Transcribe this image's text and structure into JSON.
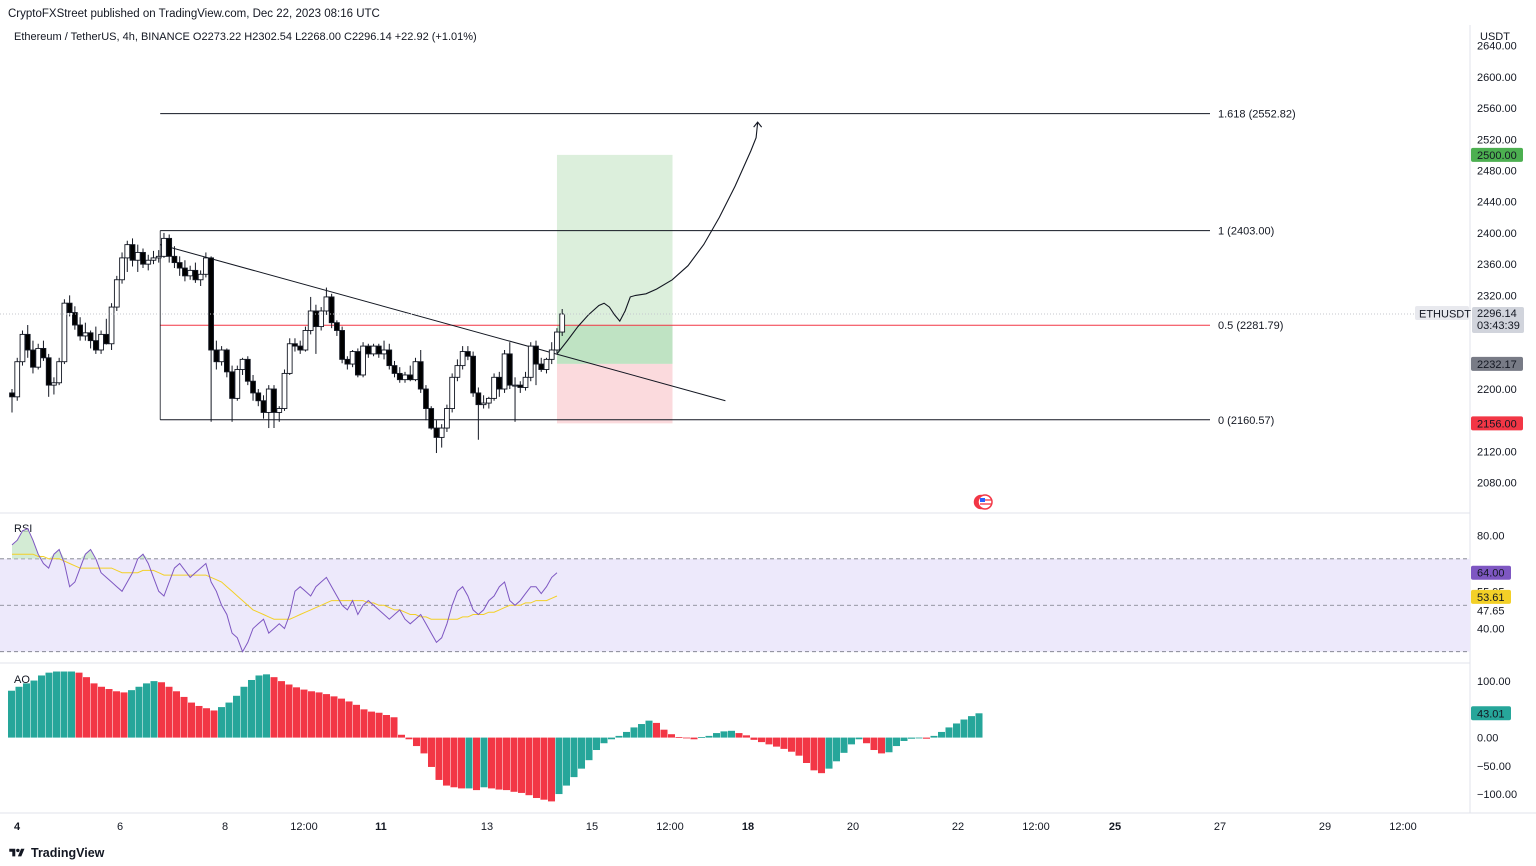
{
  "header": {
    "published_by": "CryptoFXStreet published on TradingView.com, Dec 22, 2023 08:16 UTC",
    "symbol_line": "Ethereum / TetherUS, 4h, BINANCE  O2273.22  H2302.54  L2268.00  C2296.14  +22.92 (+1.01%)"
  },
  "footer": {
    "brand": "TradingView"
  },
  "colors": {
    "up_body": "#ffffff",
    "down_body": "#000000",
    "bull_bar": "#26a69a",
    "bear_bar": "#f23645",
    "fib_mid": "#f23645",
    "target_zone": "#dcefdc",
    "profit_zone": "#bfe3c3",
    "stop_zone": "#fbdadd",
    "rsi_band": "#ede9fb",
    "rsi_line": "#7e57c2",
    "rsi_ma": "#f3d027"
  },
  "chart_data": {
    "type": "candlestick",
    "title": "Ethereum / TetherUS, 4h, BINANCE",
    "currency": "USDT",
    "ohlc": {
      "open": 2273.22,
      "high": 2302.54,
      "low": 2268.0,
      "close": 2296.14,
      "change": 22.92,
      "change_pct": 1.01
    },
    "x_axis": {
      "labels": [
        "4",
        "6",
        "8",
        "12:00",
        "11",
        "13",
        "15",
        "12:00",
        "18",
        "20",
        "22",
        "12:00",
        "25",
        "27",
        "29",
        "12:00"
      ],
      "bold": [
        true,
        false,
        false,
        false,
        true,
        false,
        false,
        false,
        true,
        false,
        false,
        false,
        true,
        false,
        false,
        false
      ]
    },
    "price_axis": {
      "ticks": [
        2640,
        2600,
        2560,
        2520,
        2480,
        2440,
        2400,
        2360,
        2320,
        2200,
        2160,
        2120,
        2080
      ],
      "ylim": [
        2045,
        2660
      ]
    },
    "price_labels": [
      {
        "text": "2500.00",
        "value": 2500.0,
        "color": "#4caf50"
      },
      {
        "text": "2232.17",
        "value": 2232.17,
        "color": "#787b86"
      },
      {
        "text": "2156.00",
        "value": 2156.0,
        "color": "#f23645"
      }
    ],
    "last_price": {
      "symbol": "ETHUSDT",
      "price": "2296.14",
      "countdown": "03:43:39",
      "value": 2296.14
    },
    "candles": [
      {
        "o": 2195,
        "h": 2200,
        "l": 2170,
        "c": 2190
      },
      {
        "o": 2190,
        "h": 2240,
        "l": 2185,
        "c": 2235
      },
      {
        "o": 2235,
        "h": 2275,
        "l": 2230,
        "c": 2270
      },
      {
        "o": 2270,
        "h": 2282,
        "l": 2240,
        "c": 2250
      },
      {
        "o": 2250,
        "h": 2262,
        "l": 2220,
        "c": 2228
      },
      {
        "o": 2228,
        "h": 2258,
        "l": 2225,
        "c": 2252
      },
      {
        "o": 2252,
        "h": 2262,
        "l": 2236,
        "c": 2240
      },
      {
        "o": 2240,
        "h": 2245,
        "l": 2190,
        "c": 2205
      },
      {
        "o": 2205,
        "h": 2215,
        "l": 2193,
        "c": 2208
      },
      {
        "o": 2208,
        "h": 2240,
        "l": 2205,
        "c": 2235
      },
      {
        "o": 2235,
        "h": 2315,
        "l": 2232,
        "c": 2310
      },
      {
        "o": 2310,
        "h": 2320,
        "l": 2293,
        "c": 2298
      },
      {
        "o": 2298,
        "h": 2306,
        "l": 2276,
        "c": 2282
      },
      {
        "o": 2282,
        "h": 2292,
        "l": 2262,
        "c": 2268
      },
      {
        "o": 2268,
        "h": 2285,
        "l": 2262,
        "c": 2272
      },
      {
        "o": 2272,
        "h": 2275,
        "l": 2252,
        "c": 2262
      },
      {
        "o": 2262,
        "h": 2280,
        "l": 2245,
        "c": 2250
      },
      {
        "o": 2250,
        "h": 2275,
        "l": 2245,
        "c": 2270
      },
      {
        "o": 2270,
        "h": 2290,
        "l": 2257,
        "c": 2258
      },
      {
        "o": 2258,
        "h": 2310,
        "l": 2250,
        "c": 2305
      },
      {
        "o": 2305,
        "h": 2345,
        "l": 2300,
        "c": 2340
      },
      {
        "o": 2340,
        "h": 2375,
        "l": 2335,
        "c": 2368
      },
      {
        "o": 2368,
        "h": 2390,
        "l": 2350,
        "c": 2385
      },
      {
        "o": 2385,
        "h": 2393,
        "l": 2357,
        "c": 2365
      },
      {
        "o": 2365,
        "h": 2385,
        "l": 2350,
        "c": 2375
      },
      {
        "o": 2375,
        "h": 2380,
        "l": 2355,
        "c": 2360
      },
      {
        "o": 2360,
        "h": 2372,
        "l": 2352,
        "c": 2365
      },
      {
        "o": 2365,
        "h": 2377,
        "l": 2360,
        "c": 2368
      },
      {
        "o": 2368,
        "h": 2378,
        "l": 2362,
        "c": 2370
      },
      {
        "o": 2370,
        "h": 2400,
        "l": 2368,
        "c": 2393
      },
      {
        "o": 2393,
        "h": 2398,
        "l": 2362,
        "c": 2370
      },
      {
        "o": 2370,
        "h": 2383,
        "l": 2355,
        "c": 2362
      },
      {
        "o": 2362,
        "h": 2370,
        "l": 2345,
        "c": 2355
      },
      {
        "o": 2355,
        "h": 2365,
        "l": 2338,
        "c": 2345
      },
      {
        "o": 2345,
        "h": 2358,
        "l": 2340,
        "c": 2352
      },
      {
        "o": 2352,
        "h": 2362,
        "l": 2336,
        "c": 2340
      },
      {
        "o": 2340,
        "h": 2352,
        "l": 2332,
        "c": 2347
      },
      {
        "o": 2347,
        "h": 2375,
        "l": 2343,
        "c": 2368
      },
      {
        "o": 2368,
        "h": 2370,
        "l": 2158,
        "c": 2250
      },
      {
        "o": 2250,
        "h": 2262,
        "l": 2225,
        "c": 2235
      },
      {
        "o": 2235,
        "h": 2255,
        "l": 2230,
        "c": 2250
      },
      {
        "o": 2250,
        "h": 2252,
        "l": 2215,
        "c": 2222
      },
      {
        "o": 2222,
        "h": 2230,
        "l": 2158,
        "c": 2188
      },
      {
        "o": 2188,
        "h": 2230,
        "l": 2185,
        "c": 2225
      },
      {
        "o": 2225,
        "h": 2240,
        "l": 2218,
        "c": 2238
      },
      {
        "o": 2238,
        "h": 2242,
        "l": 2205,
        "c": 2210
      },
      {
        "o": 2210,
        "h": 2218,
        "l": 2185,
        "c": 2195
      },
      {
        "o": 2195,
        "h": 2200,
        "l": 2178,
        "c": 2185
      },
      {
        "o": 2185,
        "h": 2192,
        "l": 2162,
        "c": 2170
      },
      {
        "o": 2170,
        "h": 2205,
        "l": 2150,
        "c": 2200
      },
      {
        "o": 2200,
        "h": 2205,
        "l": 2150,
        "c": 2170
      },
      {
        "o": 2170,
        "h": 2178,
        "l": 2158,
        "c": 2175
      },
      {
        "o": 2175,
        "h": 2225,
        "l": 2172,
        "c": 2220
      },
      {
        "o": 2220,
        "h": 2265,
        "l": 2218,
        "c": 2258
      },
      {
        "o": 2258,
        "h": 2265,
        "l": 2248,
        "c": 2255
      },
      {
        "o": 2255,
        "h": 2262,
        "l": 2245,
        "c": 2250
      },
      {
        "o": 2250,
        "h": 2280,
        "l": 2248,
        "c": 2275
      },
      {
        "o": 2275,
        "h": 2318,
        "l": 2270,
        "c": 2300
      },
      {
        "o": 2300,
        "h": 2308,
        "l": 2245,
        "c": 2280
      },
      {
        "o": 2280,
        "h": 2305,
        "l": 2275,
        "c": 2300
      },
      {
        "o": 2300,
        "h": 2330,
        "l": 2295,
        "c": 2318
      },
      {
        "o": 2318,
        "h": 2322,
        "l": 2278,
        "c": 2285
      },
      {
        "o": 2285,
        "h": 2288,
        "l": 2268,
        "c": 2275
      },
      {
        "o": 2275,
        "h": 2280,
        "l": 2233,
        "c": 2238
      },
      {
        "o": 2238,
        "h": 2242,
        "l": 2225,
        "c": 2232
      },
      {
        "o": 2232,
        "h": 2250,
        "l": 2228,
        "c": 2248
      },
      {
        "o": 2248,
        "h": 2252,
        "l": 2215,
        "c": 2218
      },
      {
        "o": 2218,
        "h": 2260,
        "l": 2215,
        "c": 2255
      },
      {
        "o": 2255,
        "h": 2258,
        "l": 2240,
        "c": 2245
      },
      {
        "o": 2245,
        "h": 2258,
        "l": 2242,
        "c": 2255
      },
      {
        "o": 2255,
        "h": 2258,
        "l": 2240,
        "c": 2245
      },
      {
        "o": 2245,
        "h": 2262,
        "l": 2238,
        "c": 2250
      },
      {
        "o": 2250,
        "h": 2258,
        "l": 2225,
        "c": 2230
      },
      {
        "o": 2230,
        "h": 2236,
        "l": 2215,
        "c": 2220
      },
      {
        "o": 2220,
        "h": 2228,
        "l": 2208,
        "c": 2212
      },
      {
        "o": 2212,
        "h": 2222,
        "l": 2208,
        "c": 2218
      },
      {
        "o": 2218,
        "h": 2230,
        "l": 2210,
        "c": 2212
      },
      {
        "o": 2212,
        "h": 2240,
        "l": 2210,
        "c": 2235
      },
      {
        "o": 2235,
        "h": 2250,
        "l": 2195,
        "c": 2200
      },
      {
        "o": 2200,
        "h": 2205,
        "l": 2160,
        "c": 2175
      },
      {
        "o": 2175,
        "h": 2178,
        "l": 2148,
        "c": 2150
      },
      {
        "o": 2150,
        "h": 2160,
        "l": 2118,
        "c": 2138
      },
      {
        "o": 2138,
        "h": 2155,
        "l": 2125,
        "c": 2150
      },
      {
        "o": 2150,
        "h": 2180,
        "l": 2145,
        "c": 2175
      },
      {
        "o": 2175,
        "h": 2220,
        "l": 2170,
        "c": 2215
      },
      {
        "o": 2215,
        "h": 2238,
        "l": 2210,
        "c": 2230
      },
      {
        "o": 2230,
        "h": 2255,
        "l": 2225,
        "c": 2248
      },
      {
        "o": 2248,
        "h": 2255,
        "l": 2237,
        "c": 2242
      },
      {
        "o": 2242,
        "h": 2248,
        "l": 2190,
        "c": 2195
      },
      {
        "o": 2195,
        "h": 2202,
        "l": 2135,
        "c": 2180
      },
      {
        "o": 2180,
        "h": 2192,
        "l": 2175,
        "c": 2182
      },
      {
        "o": 2182,
        "h": 2190,
        "l": 2175,
        "c": 2188
      },
      {
        "o": 2188,
        "h": 2220,
        "l": 2185,
        "c": 2215
      },
      {
        "o": 2215,
        "h": 2222,
        "l": 2190,
        "c": 2200
      },
      {
        "o": 2200,
        "h": 2250,
        "l": 2195,
        "c": 2245
      },
      {
        "o": 2245,
        "h": 2260,
        "l": 2200,
        "c": 2205
      },
      {
        "o": 2205,
        "h": 2215,
        "l": 2158,
        "c": 2205
      },
      {
        "o": 2205,
        "h": 2210,
        "l": 2195,
        "c": 2202
      },
      {
        "o": 2202,
        "h": 2222,
        "l": 2198,
        "c": 2215
      },
      {
        "o": 2215,
        "h": 2260,
        "l": 2210,
        "c": 2255
      },
      {
        "o": 2255,
        "h": 2262,
        "l": 2205,
        "c": 2232
      },
      {
        "o": 2232,
        "h": 2240,
        "l": 2222,
        "c": 2225
      },
      {
        "o": 2225,
        "h": 2240,
        "l": 2220,
        "c": 2238
      },
      {
        "o": 2238,
        "h": 2260,
        "l": 2232,
        "c": 2250
      },
      {
        "o": 2250,
        "h": 2278,
        "l": 2246,
        "c": 2273
      },
      {
        "o": 2273,
        "h": 2302.54,
        "l": 2268,
        "c": 2296.14
      }
    ],
    "fib_levels": [
      {
        "ratio": "1.618",
        "value": 2552.82,
        "label": "1.618 (2552.82)",
        "color": "#131722"
      },
      {
        "ratio": "1",
        "value": 2403.0,
        "label": "1 (2403.00)",
        "color": "#131722"
      },
      {
        "ratio": "0.5",
        "value": 2281.79,
        "label": "0.5 (2281.79)",
        "color": "#f23645"
      },
      {
        "ratio": "0",
        "value": 2160.57,
        "label": "0 (2160.57)",
        "color": "#131722"
      }
    ],
    "trendline": {
      "from": {
        "bar": 30,
        "price": 2385
      },
      "to": {
        "bar": 135,
        "price": 2185
      }
    },
    "position": {
      "entry": 2232.17,
      "target": 2500.0,
      "stop": 2156.0,
      "bar_from": 104,
      "bar_to": 123
    },
    "projection": [
      [
        104,
        2245
      ],
      [
        106,
        2262
      ],
      [
        108,
        2280
      ],
      [
        110,
        2295
      ],
      [
        112,
        2307
      ],
      [
        113,
        2310
      ],
      [
        114,
        2305
      ],
      [
        115,
        2295
      ],
      [
        116,
        2287
      ],
      [
        117,
        2300
      ],
      [
        118,
        2318
      ],
      [
        119,
        2320
      ],
      [
        121,
        2322
      ],
      [
        123,
        2328
      ],
      [
        126,
        2340
      ],
      [
        129,
        2358
      ],
      [
        132,
        2385
      ],
      [
        135,
        2420
      ],
      [
        138,
        2460
      ],
      [
        141,
        2505
      ],
      [
        142,
        2522
      ],
      [
        142.3,
        2542
      ]
    ],
    "rsi": {
      "label": "RSI",
      "ticks": [
        80,
        40
      ],
      "ylim": [
        26,
        88
      ],
      "upper_band": 70,
      "lower_band": 30,
      "mid_band": 50,
      "values": [
        76,
        78,
        82,
        83,
        78,
        72,
        68,
        66,
        72,
        74,
        68,
        58,
        60,
        66,
        72,
        74,
        70,
        64,
        62,
        60,
        58,
        56,
        60,
        64,
        70,
        72,
        68,
        62,
        56,
        54,
        60,
        66,
        68,
        65,
        62,
        64,
        66,
        68,
        60,
        56,
        50,
        46,
        38,
        36,
        30,
        34,
        40,
        42,
        44,
        38,
        40,
        42,
        40,
        46,
        56,
        58,
        56,
        54,
        58,
        60,
        62,
        58,
        54,
        50,
        48,
        52,
        46,
        50,
        52,
        50,
        48,
        46,
        44,
        46,
        48,
        44,
        42,
        44,
        46,
        42,
        38,
        34,
        36,
        42,
        50,
        56,
        58,
        54,
        48,
        46,
        48,
        52,
        54,
        58,
        60,
        52,
        50,
        52,
        55,
        58,
        58,
        55,
        58,
        62,
        64
      ],
      "ma": [
        72,
        72,
        72,
        72,
        72,
        71,
        71,
        70,
        70,
        70,
        69,
        68,
        67,
        66,
        66,
        66,
        66,
        66,
        66,
        66,
        65,
        64,
        64,
        64,
        64,
        65,
        65,
        65,
        64,
        63,
        63,
        63,
        63,
        63,
        63,
        63,
        63,
        63,
        62,
        61,
        60,
        58,
        56,
        54,
        52,
        50,
        48,
        47,
        46,
        45,
        44,
        44,
        44,
        44,
        45,
        46,
        47,
        48,
        49,
        50,
        51,
        52,
        52,
        52,
        52,
        52,
        52,
        52,
        51,
        51,
        50,
        50,
        49,
        48,
        48,
        47,
        46,
        46,
        45,
        45,
        44,
        44,
        44,
        44,
        44,
        44,
        45,
        45,
        46,
        46,
        46,
        47,
        47,
        48,
        49,
        50,
        50,
        50,
        51,
        51,
        52,
        52,
        52,
        53,
        54
      ],
      "price_labels": [
        {
          "text": "64.00",
          "value": 64.0,
          "color": "#7e57c2"
        },
        {
          "text": "53.61",
          "value": 53.61,
          "color": "#f3d027"
        }
      ],
      "levels": [
        "55.95",
        "47.65"
      ],
      "levels_values": [
        55.95,
        47.65
      ]
    },
    "ao": {
      "label": "AO",
      "ticks": [
        100.0,
        0.0,
        -50.0,
        -100.0
      ],
      "tick_labels": [
        "100.00",
        "0.00",
        "−50.00",
        "−100.00"
      ],
      "ylim": [
        -130,
        125
      ],
      "last": {
        "text": "43.01",
        "value": 43.01
      },
      "values": [
        83,
        90,
        96,
        101,
        110,
        115,
        117,
        117,
        117,
        115,
        107,
        96,
        90,
        86,
        82,
        80,
        84,
        90,
        96,
        100,
        98,
        90,
        82,
        72,
        62,
        56,
        52,
        48,
        54,
        62,
        74,
        90,
        102,
        110,
        112,
        107,
        100,
        94,
        89,
        85,
        82,
        80,
        77,
        73,
        69,
        64,
        58,
        50,
        46,
        44,
        40,
        36,
        5,
        -3,
        -15,
        -28,
        -52,
        -75,
        -85,
        -88,
        -90,
        -90,
        -93,
        -88,
        -90,
        -92,
        -93,
        -96,
        -98,
        -102,
        -107,
        -110,
        -113,
        -100,
        -85,
        -70,
        -55,
        -40,
        -22,
        -10,
        -3,
        3,
        10,
        18,
        24,
        30,
        26,
        14,
        6,
        1,
        -1,
        -3,
        1,
        3,
        8,
        11,
        12,
        8,
        4,
        -4,
        -8,
        -12,
        -16,
        -20,
        -25,
        -32,
        -45,
        -58,
        -63,
        -55,
        -42,
        -27,
        -12,
        -3,
        -10,
        -22,
        -28,
        -26,
        -15,
        -6,
        -2,
        -1,
        -2,
        3,
        10,
        18,
        25,
        32,
        38,
        43.01
      ]
    }
  }
}
